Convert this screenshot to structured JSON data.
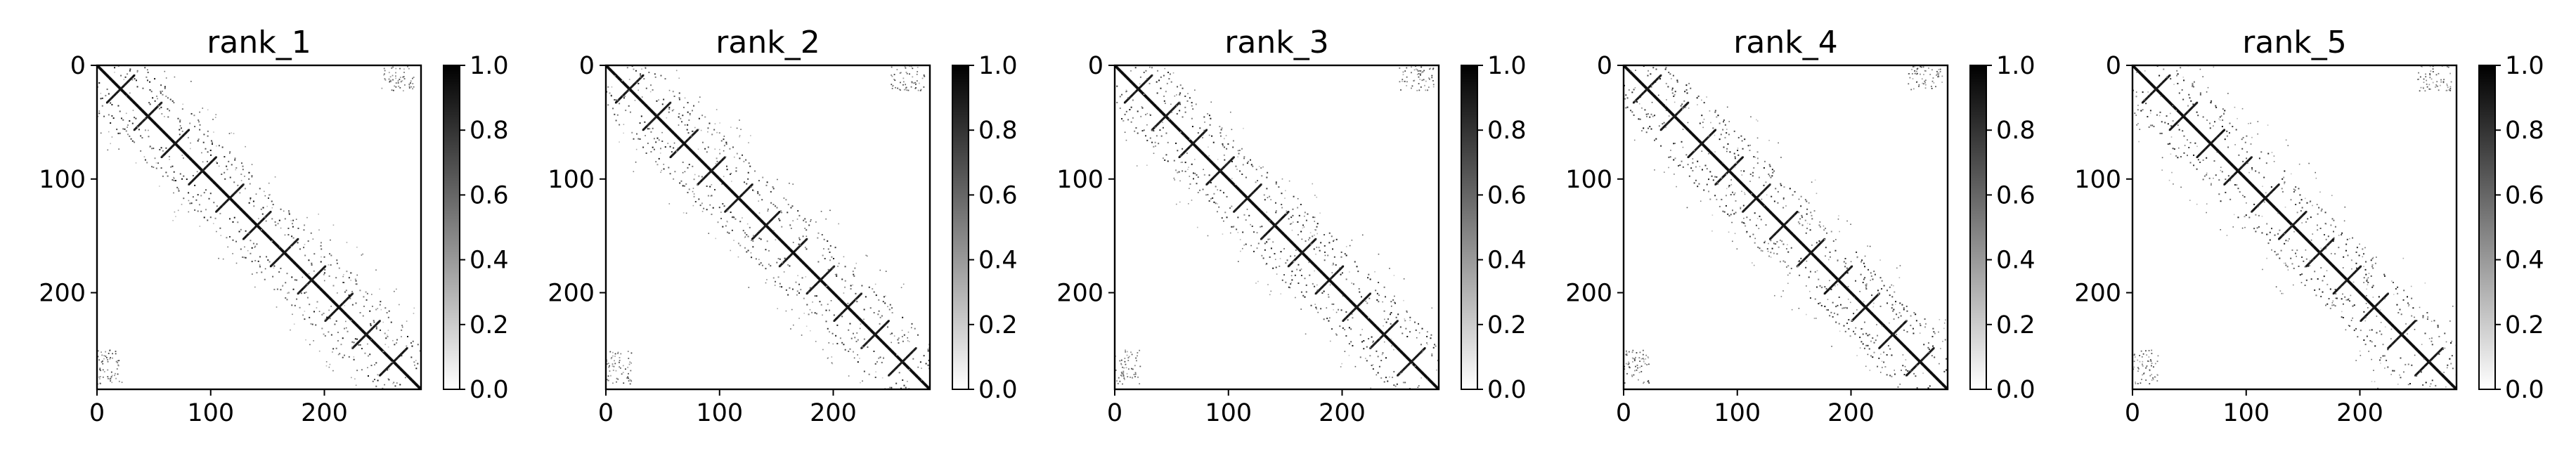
{
  "figure": {
    "background": "#ffffff",
    "colormap": {
      "name": "gray_r",
      "low": "#ffffff",
      "high": "#000000"
    }
  },
  "chart_data": [
    {
      "type": "heatmap",
      "title": "rank_1",
      "xlabel": "",
      "ylabel": "",
      "xlim": [
        0,
        285
      ],
      "ylim": [
        285,
        0
      ],
      "xticks": [
        "0",
        "100",
        "200"
      ],
      "yticks": [
        "0",
        "100",
        "200"
      ],
      "colorbar": {
        "range": [
          0.0,
          1.0
        ],
        "ticks": [
          "0.0",
          "0.2",
          "0.4",
          "0.6",
          "0.8",
          "1.0"
        ]
      }
    },
    {
      "type": "heatmap",
      "title": "rank_2",
      "xlabel": "",
      "ylabel": "",
      "xlim": [
        0,
        285
      ],
      "ylim": [
        285,
        0
      ],
      "xticks": [
        "0",
        "100",
        "200"
      ],
      "yticks": [
        "0",
        "100",
        "200"
      ],
      "colorbar": {
        "range": [
          0.0,
          1.0
        ],
        "ticks": [
          "0.0",
          "0.2",
          "0.4",
          "0.6",
          "0.8",
          "1.0"
        ]
      }
    },
    {
      "type": "heatmap",
      "title": "rank_3",
      "xlabel": "",
      "ylabel": "",
      "xlim": [
        0,
        285
      ],
      "ylim": [
        285,
        0
      ],
      "xticks": [
        "0",
        "100",
        "200"
      ],
      "yticks": [
        "0",
        "100",
        "200"
      ],
      "colorbar": {
        "range": [
          0.0,
          1.0
        ],
        "ticks": [
          "0.0",
          "0.2",
          "0.4",
          "0.6",
          "0.8",
          "1.0"
        ]
      }
    },
    {
      "type": "heatmap",
      "title": "rank_4",
      "xlabel": "",
      "ylabel": "",
      "xlim": [
        0,
        285
      ],
      "ylim": [
        285,
        0
      ],
      "xticks": [
        "0",
        "100",
        "200"
      ],
      "yticks": [
        "0",
        "100",
        "200"
      ],
      "colorbar": {
        "range": [
          0.0,
          1.0
        ],
        "ticks": [
          "0.0",
          "0.2",
          "0.4",
          "0.6",
          "0.8",
          "1.0"
        ]
      }
    },
    {
      "type": "heatmap",
      "title": "rank_5",
      "xlabel": "",
      "ylabel": "",
      "xlim": [
        0,
        285
      ],
      "ylim": [
        285,
        0
      ],
      "xticks": [
        "0",
        "100",
        "200"
      ],
      "yticks": [
        "0",
        "100",
        "200"
      ],
      "colorbar": {
        "range": [
          0.0,
          1.0
        ],
        "ticks": [
          "0.0",
          "0.2",
          "0.4",
          "0.6",
          "0.8",
          "1.0"
        ]
      }
    }
  ]
}
